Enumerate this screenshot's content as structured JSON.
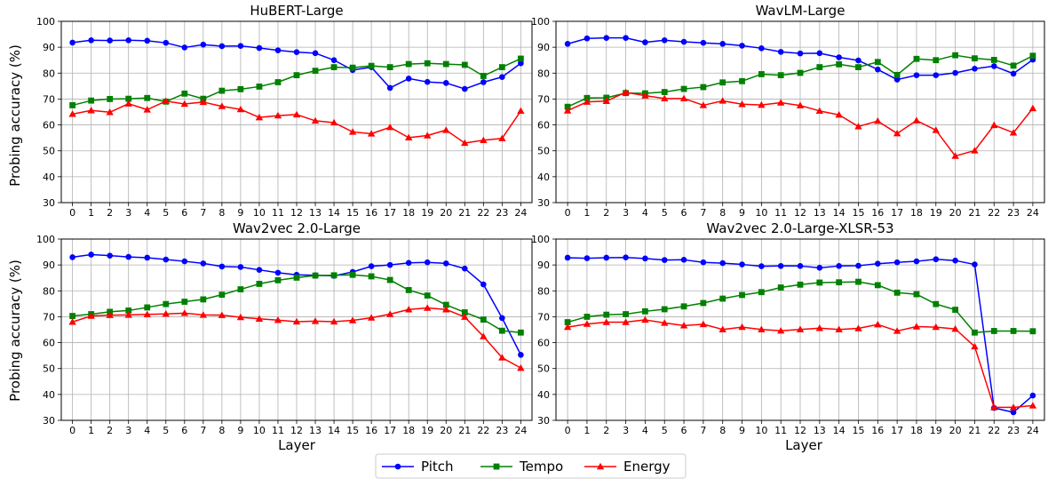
{
  "figure": {
    "ylabel": "Probing accuracy (%)",
    "xlabel": "Layer",
    "legend": [
      {
        "name": "Pitch",
        "color": "#0000ff",
        "marker": "circle"
      },
      {
        "name": "Tempo",
        "color": "#008000",
        "marker": "square"
      },
      {
        "name": "Energy",
        "color": "#ff0000",
        "marker": "triangle"
      }
    ]
  },
  "chart_data": [
    {
      "type": "line",
      "title": "HuBERT-Large",
      "x": [
        0,
        1,
        2,
        3,
        4,
        5,
        6,
        7,
        8,
        9,
        10,
        11,
        12,
        13,
        14,
        15,
        16,
        17,
        18,
        19,
        20,
        21,
        22,
        23,
        24
      ],
      "ylim": [
        30,
        100
      ],
      "yticks": [
        30,
        40,
        50,
        60,
        70,
        80,
        90,
        100
      ],
      "grid": true,
      "series": [
        {
          "name": "Pitch",
          "color": "#0000ff",
          "marker": "circle",
          "values": [
            91.8,
            92.7,
            92.6,
            92.7,
            92.5,
            91.7,
            89.9,
            91.0,
            90.4,
            90.5,
            89.7,
            88.8,
            88.1,
            87.7,
            85.0,
            81.2,
            82.3,
            74.3,
            77.9,
            76.6,
            76.2,
            73.9,
            76.5,
            78.5,
            83.8
          ]
        },
        {
          "name": "Tempo",
          "color": "#008000",
          "marker": "square",
          "values": [
            67.6,
            69.4,
            70.0,
            70.1,
            70.4,
            69.0,
            72.1,
            70.1,
            73.2,
            73.8,
            74.8,
            76.5,
            79.2,
            80.9,
            82.3,
            82.1,
            82.8,
            82.3,
            83.5,
            83.8,
            83.5,
            83.2,
            78.9,
            82.3,
            85.6
          ]
        },
        {
          "name": "Energy",
          "color": "#ff0000",
          "marker": "triangle",
          "values": [
            64.2,
            65.6,
            64.9,
            68.2,
            65.9,
            69.2,
            68.1,
            68.8,
            67.2,
            66.0,
            62.9,
            63.6,
            64.0,
            61.6,
            60.9,
            57.3,
            56.6,
            59.1,
            55.1,
            55.9,
            58.0,
            53.0,
            54.1,
            54.8,
            65.4
          ]
        }
      ]
    },
    {
      "type": "line",
      "title": "WavLM-Large",
      "x": [
        0,
        1,
        2,
        3,
        4,
        5,
        6,
        7,
        8,
        9,
        10,
        11,
        12,
        13,
        14,
        15,
        16,
        17,
        18,
        19,
        20,
        21,
        22,
        23,
        24
      ],
      "ylim": [
        30,
        100
      ],
      "yticks": [
        30,
        40,
        50,
        60,
        70,
        80,
        90,
        100
      ],
      "grid": true,
      "series": [
        {
          "name": "Pitch",
          "color": "#0000ff",
          "marker": "circle",
          "values": [
            91.3,
            93.4,
            93.6,
            93.6,
            91.9,
            92.7,
            92.1,
            91.7,
            91.3,
            90.6,
            89.6,
            88.2,
            87.6,
            87.7,
            86.1,
            84.9,
            81.4,
            77.5,
            79.2,
            79.2,
            80.1,
            81.7,
            82.7,
            79.8,
            85.2
          ]
        },
        {
          "name": "Tempo",
          "color": "#008000",
          "marker": "square",
          "values": [
            67.0,
            70.4,
            70.5,
            72.3,
            72.2,
            72.7,
            73.9,
            74.6,
            76.4,
            76.9,
            79.6,
            79.2,
            80.1,
            82.3,
            83.4,
            82.3,
            84.3,
            79.3,
            85.5,
            85.0,
            86.9,
            85.7,
            85.1,
            82.9,
            86.7
          ]
        },
        {
          "name": "Energy",
          "color": "#ff0000",
          "marker": "triangle",
          "values": [
            65.5,
            68.9,
            69.2,
            72.6,
            71.3,
            70.2,
            70.2,
            67.6,
            69.3,
            68.0,
            67.7,
            68.6,
            67.5,
            65.4,
            63.9,
            59.4,
            61.5,
            56.7,
            61.7,
            58.0,
            48.0,
            50.1,
            59.9,
            57.0,
            66.4
          ]
        }
      ]
    },
    {
      "type": "line",
      "title": "Wav2vec 2.0-Large",
      "x": [
        0,
        1,
        2,
        3,
        4,
        5,
        6,
        7,
        8,
        9,
        10,
        11,
        12,
        13,
        14,
        15,
        16,
        17,
        18,
        19,
        20,
        21,
        22,
        23,
        24
      ],
      "ylim": [
        30,
        100
      ],
      "yticks": [
        30,
        40,
        50,
        60,
        70,
        80,
        90,
        100
      ],
      "grid": true,
      "series": [
        {
          "name": "Pitch",
          "color": "#0000ff",
          "marker": "circle",
          "values": [
            93.0,
            94.0,
            93.6,
            93.1,
            92.8,
            92.1,
            91.4,
            90.6,
            89.4,
            89.2,
            88.1,
            87.0,
            86.2,
            86.0,
            85.8,
            87.3,
            89.5,
            90.0,
            90.8,
            91.0,
            90.6,
            88.6,
            82.5,
            69.5,
            55.3
          ]
        },
        {
          "name": "Tempo",
          "color": "#008000",
          "marker": "square",
          "values": [
            70.3,
            71.0,
            71.9,
            72.4,
            73.6,
            74.9,
            75.8,
            76.7,
            78.5,
            80.6,
            82.7,
            84.1,
            85.1,
            85.9,
            86.0,
            86.2,
            85.6,
            84.2,
            80.3,
            78.2,
            74.6,
            71.7,
            68.9,
            64.6,
            63.9
          ]
        },
        {
          "name": "Energy",
          "color": "#ff0000",
          "marker": "triangle",
          "values": [
            68.0,
            70.3,
            70.6,
            70.7,
            70.9,
            71.1,
            71.4,
            70.7,
            70.6,
            69.8,
            69.2,
            68.7,
            68.1,
            68.3,
            68.1,
            68.6,
            69.6,
            71.0,
            72.8,
            73.4,
            72.8,
            69.9,
            62.4,
            54.2,
            50.2
          ]
        }
      ]
    },
    {
      "type": "line",
      "title": "Wav2vec 2.0-Large-XLSR-53",
      "x": [
        0,
        1,
        2,
        3,
        4,
        5,
        6,
        7,
        8,
        9,
        10,
        11,
        12,
        13,
        14,
        15,
        16,
        17,
        18,
        19,
        20,
        21,
        22,
        23,
        24
      ],
      "ylim": [
        30,
        100
      ],
      "yticks": [
        30,
        40,
        50,
        60,
        70,
        80,
        90,
        100
      ],
      "grid": true,
      "series": [
        {
          "name": "Pitch",
          "color": "#0000ff",
          "marker": "circle",
          "values": [
            92.8,
            92.6,
            92.8,
            92.9,
            92.5,
            91.9,
            92.0,
            91.0,
            90.7,
            90.2,
            89.5,
            89.6,
            89.6,
            88.9,
            89.6,
            89.7,
            90.5,
            91.0,
            91.4,
            92.2,
            91.7,
            90.2,
            34.8,
            33.1,
            39.6
          ]
        },
        {
          "name": "Tempo",
          "color": "#008000",
          "marker": "square",
          "values": [
            67.9,
            70.0,
            70.8,
            71.0,
            72.1,
            72.9,
            74.0,
            75.3,
            77.0,
            78.4,
            79.5,
            81.3,
            82.4,
            83.2,
            83.3,
            83.5,
            82.2,
            79.3,
            78.7,
            74.9,
            72.7,
            63.9,
            64.5,
            64.5,
            64.4
          ]
        },
        {
          "name": "Energy",
          "color": "#ff0000",
          "marker": "triangle",
          "values": [
            66.0,
            67.2,
            67.9,
            67.9,
            68.8,
            67.6,
            66.6,
            67.1,
            65.1,
            66.0,
            65.1,
            64.6,
            65.1,
            65.6,
            65.1,
            65.5,
            67.0,
            64.5,
            66.2,
            66.0,
            65.3,
            58.5,
            35.0,
            35.0,
            35.7
          ]
        }
      ]
    }
  ]
}
